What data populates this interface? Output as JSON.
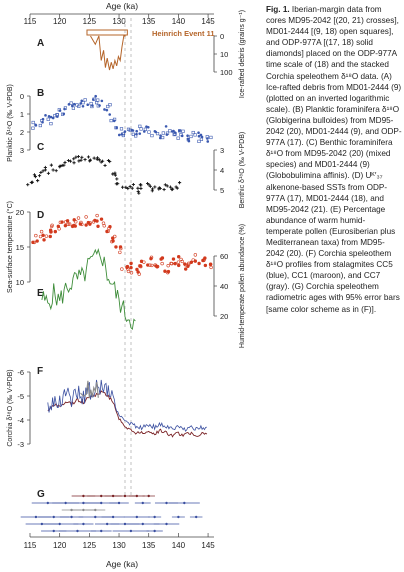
{
  "figure": {
    "top_axis_label": "Age (ka)",
    "bottom_axis_label": "Age (ka)",
    "ticks": [
      "115",
      "120",
      "125",
      "130",
      "135",
      "140",
      "145"
    ],
    "panel_letters": [
      "A",
      "B",
      "C",
      "D",
      "E",
      "F",
      "G"
    ],
    "heinrich_label": "Heinrich Event 11",
    "colors": {
      "ird": "#b5652a",
      "planktic": "#3b59b0",
      "benthic": "#111111",
      "sst": "#d23a1e",
      "pollen": "#3e8d3a",
      "speleo_blue": "#3a4fa0",
      "speleo_gray": "#8a8a8a",
      "speleo_maroon": "#7a2326",
      "he_box": "#b5652a"
    }
  },
  "axes": {
    "A_right": {
      "title": "Ice-rafted debris (grains g⁻¹)",
      "ticks": [
        "0",
        "10",
        "100"
      ],
      "log_inverted": true
    },
    "B_left": {
      "title": "Planktic δ¹⁸O (‰ V-PDB)",
      "ticks": [
        "0",
        "1",
        "2",
        "3"
      ]
    },
    "C_right": {
      "title": "Benthic δ¹⁸O (‰ V-PDB)",
      "ticks": [
        "3",
        "4",
        "5"
      ]
    },
    "D_left": {
      "title": "Sea-surface temperature (°C)",
      "ticks": [
        "20",
        "15",
        "10"
      ]
    },
    "E_right": {
      "title": "Humid-temperate pollen abundance (%)",
      "ticks": [
        "60",
        "40",
        "20"
      ]
    },
    "F_left": {
      "title": "Corchia δ¹⁸O (‰ V-PDB)",
      "ticks": [
        "-6",
        "-5",
        "-4",
        "-3"
      ]
    }
  },
  "chart_data": {
    "type": "line",
    "x_units": "ka",
    "xlim": [
      115,
      146
    ],
    "ird": {
      "x": [
        125.2,
        126.0,
        126.6,
        127.0,
        127.4,
        127.7,
        128.0,
        128.4,
        128.7,
        129.0,
        129.3,
        129.6,
        129.9,
        130.2,
        130.5,
        130.8,
        131.1
      ],
      "y": [
        0,
        3,
        0,
        60,
        10,
        200,
        40,
        300,
        80,
        250,
        60,
        150,
        30,
        60,
        5,
        0,
        0
      ]
    },
    "planktic_b": {
      "x": [
        116,
        117,
        118,
        119,
        120,
        121,
        122,
        123,
        124,
        125,
        126,
        127,
        128,
        129,
        130,
        131,
        132,
        133,
        134,
        135,
        136,
        137,
        138,
        139,
        140,
        141,
        142,
        143,
        144,
        145
      ],
      "y": [
        1.6,
        1.5,
        1.3,
        1.2,
        0.9,
        0.8,
        0.6,
        0.5,
        0.4,
        0.35,
        0.25,
        0.3,
        0.6,
        1.2,
        2.0,
        2.2,
        2.1,
        2.0,
        1.9,
        1.8,
        2.0,
        2.1,
        1.9,
        2.0,
        2.1,
        2.2,
        2.3,
        2.2,
        2.4,
        2.5
      ]
    },
    "benthic_c": {
      "x": [
        115,
        116,
        117,
        118,
        119,
        120,
        121,
        122,
        123,
        124,
        125,
        126,
        127,
        128,
        129,
        130,
        131,
        132,
        133,
        134,
        135,
        136,
        137,
        138,
        139,
        140
      ],
      "y": [
        4.6,
        4.4,
        4.2,
        4.0,
        3.9,
        3.8,
        3.7,
        3.6,
        3.5,
        3.5,
        3.4,
        3.4,
        3.5,
        3.7,
        4.1,
        4.6,
        4.9,
        4.9,
        5.0,
        4.9,
        4.8,
        5.0,
        4.9,
        4.9,
        5.0,
        4.8
      ]
    },
    "sst_d": {
      "x": [
        116,
        117,
        118,
        119,
        120,
        121,
        122,
        123,
        124,
        125,
        126,
        127,
        128,
        129,
        130,
        131,
        132,
        133,
        134,
        135,
        136,
        137,
        138,
        139,
        140,
        141,
        142,
        143,
        144,
        145
      ],
      "y": [
        16,
        16.5,
        17,
        17.5,
        18,
        18.2,
        18.5,
        18.6,
        18.8,
        18.9,
        19,
        18.4,
        17.5,
        16.3,
        14.5,
        12.5,
        12.0,
        11.8,
        12.5,
        13.0,
        12.4,
        12.8,
        12.0,
        12.6,
        13.0,
        12.5,
        12.8,
        13.2,
        13.0,
        12.6
      ]
    },
    "pollen_e": {
      "x": [
        117,
        118,
        119,
        120,
        121,
        122,
        123,
        124,
        125,
        126,
        127,
        128,
        129,
        130,
        131,
        132,
        133
      ],
      "y": [
        32,
        28,
        35,
        30,
        38,
        42,
        45,
        46,
        55,
        58,
        62,
        48,
        40,
        30,
        22,
        18,
        12
      ]
    },
    "corchia_f": {
      "x": [
        118,
        119,
        120,
        121,
        122,
        123,
        124,
        125,
        126,
        127,
        128,
        129,
        130,
        131,
        132,
        133,
        134,
        135,
        136,
        137,
        138,
        139,
        140,
        141,
        142,
        143,
        144,
        145
      ],
      "y": [
        -4.6,
        -4.9,
        -4.8,
        -5.0,
        -4.9,
        -5.1,
        -5.0,
        -5.2,
        -5.3,
        -5.4,
        -5.3,
        -5.0,
        -4.3,
        -3.9,
        -3.8,
        -3.7,
        -3.7,
        -3.8,
        -3.7,
        -3.8,
        -3.7,
        -3.6,
        -3.7,
        -3.6,
        -3.7,
        -3.6,
        -3.7,
        -3.6
      ]
    }
  },
  "caption": {
    "label": "Fig. 1.",
    "text": " Iberian-margin data from cores MD95-2042 [(20, 21) crosses], MD01-2444 [(9, 18) open squares], and ODP-977A [(17, 18) solid diamonds] placed on the ODP-977A time scale of (18) and the stacked Corchia speleothem δ¹⁸O data. (A) Ice-rafted debris from MD01-2444 (9) (plotted on an inverted logarithmic scale). (B) Planktic foraminifera δ¹⁸O (Globigerina bulloides) from MD95-2042 (20), MD01-2444 (9), and ODP-977A (17). (C) Benthic foraminifera δ¹⁸O from MD95-2042 (20) (mixed species) and MD01-2444 (9) (Globobulimina affinis). (D) Uᴷ′₃₇ alkenone-based SSTs from ODP-977A (17), MD01-2444 (18), and MD95-2042 (21). (E) Percentage abundance of warm humid-temperate pollen (Eurosiberian plus Mediterranean taxa) from MD95-2042 (20). (F) Corchia speleothem δ¹⁸O profiles from stalagmites CC5 (blue), CC1 (maroon), and CC7 (gray). (G) Corchia speleothem radiometric ages with 95% error bars [same color scheme as in (F)]."
  }
}
